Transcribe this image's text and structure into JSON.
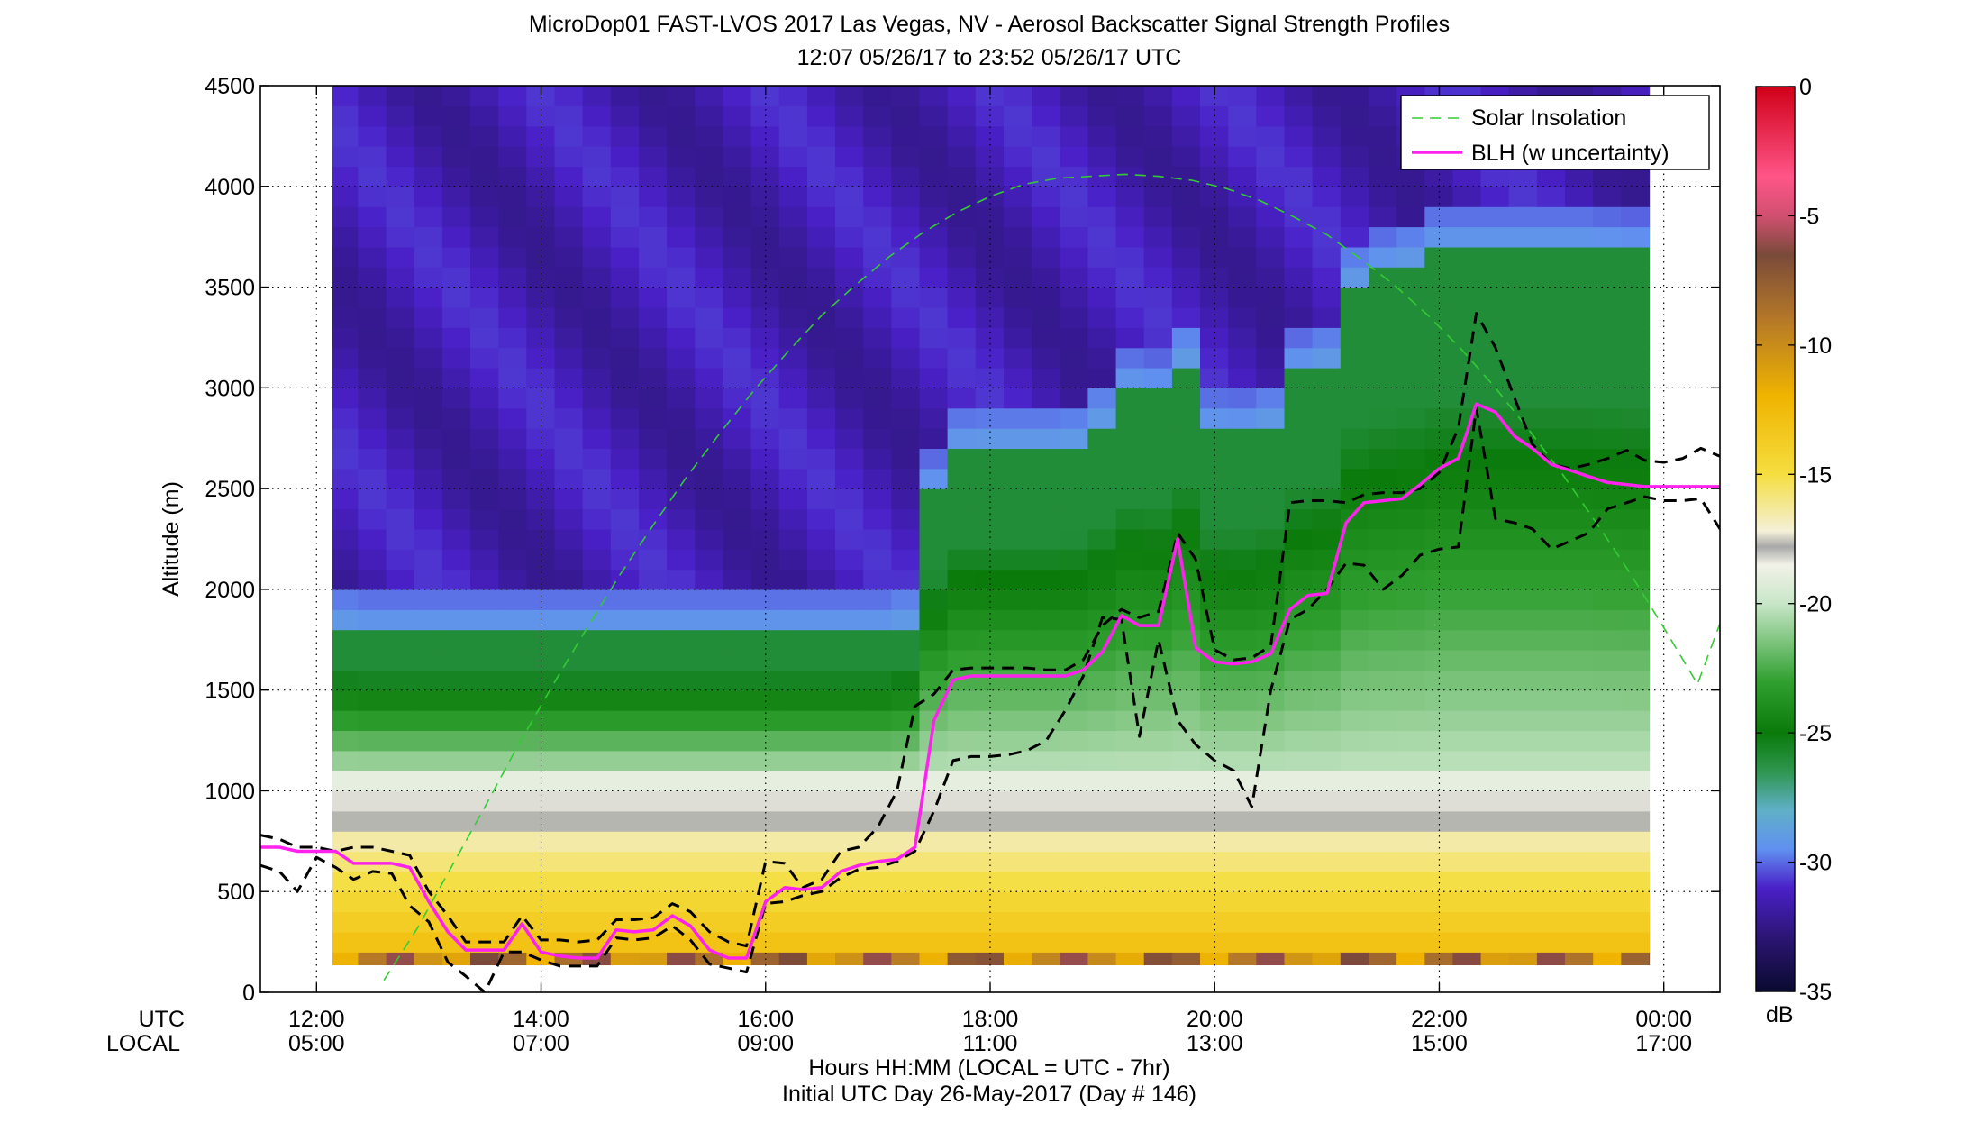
{
  "title_line1": "MicroDop01 FAST-LVOS 2017 Las Vegas, NV - Aerosol Backscatter Signal Strength Profiles",
  "title_line2": "12:07 05/26/17 to 23:52 05/26/17  UTC",
  "row_label_utc": "UTC",
  "row_label_local": "LOCAL",
  "xlabel_line1": "Hours HH:MM  (LOCAL = UTC - 7hr)",
  "xlabel_line2": "Initial UTC Day 26-May-2017 (Day # 146)",
  "colorbar_unit": "dB",
  "colors": {
    "blh": "#ff22ee",
    "uncertainty": "#000000",
    "solar": "#33cc33",
    "grid": "#000000"
  },
  "chart_data": {
    "type": "heatmap",
    "ylabel": "Altitude (m)",
    "ylim": [
      0,
      4500
    ],
    "yticks": [
      "0",
      "500",
      "1000",
      "1500",
      "2000",
      "2500",
      "3000",
      "3500",
      "4000",
      "4500"
    ],
    "ytick_values": [
      0,
      500,
      1000,
      1500,
      2000,
      2500,
      3000,
      3500,
      4000,
      4500
    ],
    "xlim": [
      11.5,
      24.5
    ],
    "xtick_values": [
      12,
      14,
      16,
      18,
      20,
      22,
      24
    ],
    "xticks_utc": [
      "12:00",
      "14:00",
      "16:00",
      "18:00",
      "20:00",
      "22:00",
      "00:00"
    ],
    "xticks_local": [
      "05:00",
      "07:00",
      "09:00",
      "11:00",
      "13:00",
      "15:00",
      "17:00"
    ],
    "data_x_range": [
      12.12,
      23.87
    ],
    "data_y_range": [
      100,
      4500
    ],
    "colorbar": {
      "clim": [
        -35,
        0
      ],
      "ticks": [
        "0",
        "-5",
        "-10",
        "-15",
        "-20",
        "-25",
        "-30",
        "-35"
      ],
      "tick_values": [
        0,
        -5,
        -10,
        -15,
        -20,
        -25,
        -30,
        -35
      ],
      "stops": [
        {
          "v": -35,
          "c": "#0a0a30"
        },
        {
          "v": -33,
          "c": "#2a1570"
        },
        {
          "v": -31,
          "c": "#4a20c8"
        },
        {
          "v": -29.5,
          "c": "#6090f0"
        },
        {
          "v": -28,
          "c": "#60b0c8"
        },
        {
          "v": -26.5,
          "c": "#2e9650"
        },
        {
          "v": -25,
          "c": "#0a7a0a"
        },
        {
          "v": -23,
          "c": "#30a030"
        },
        {
          "v": -20,
          "c": "#c8e6c8"
        },
        {
          "v": -18.5,
          "c": "#f2f2e8"
        },
        {
          "v": -17.8,
          "c": "#a8a8a8"
        },
        {
          "v": -17.2,
          "c": "#f4f0d8"
        },
        {
          "v": -15,
          "c": "#f5de40"
        },
        {
          "v": -12,
          "c": "#f0b400"
        },
        {
          "v": -9,
          "c": "#b47828"
        },
        {
          "v": -6.5,
          "c": "#7a4a3a"
        },
        {
          "v": -5,
          "c": "#d05070"
        },
        {
          "v": -3.5,
          "c": "#ff5588"
        },
        {
          "v": 0,
          "c": "#d00018"
        }
      ]
    },
    "legend": {
      "position": "top-right",
      "entries": [
        "Solar Insolation",
        "BLH (w uncertainty)"
      ]
    },
    "series": [
      {
        "name": "BLH (w uncertainty)",
        "style": "solid",
        "x": [
          11.5,
          11.67,
          11.83,
          12.0,
          12.17,
          12.33,
          12.5,
          12.67,
          12.83,
          13.0,
          13.17,
          13.33,
          13.5,
          13.67,
          13.83,
          14.0,
          14.17,
          14.33,
          14.5,
          14.67,
          14.83,
          15.0,
          15.17,
          15.33,
          15.5,
          15.67,
          15.83,
          16.0,
          16.17,
          16.33,
          16.5,
          16.67,
          16.83,
          17.0,
          17.17,
          17.33,
          17.5,
          17.67,
          17.83,
          18.0,
          18.17,
          18.33,
          18.5,
          18.67,
          18.83,
          19.0,
          19.17,
          19.33,
          19.5,
          19.67,
          19.83,
          20.0,
          20.17,
          20.33,
          20.5,
          20.67,
          20.83,
          21.0,
          21.17,
          21.33,
          21.5,
          21.67,
          21.83,
          22.0,
          22.17,
          22.33,
          22.5,
          22.67,
          22.83,
          23.0,
          23.17,
          23.33,
          23.5,
          23.67,
          23.83,
          24.0,
          24.17,
          24.33,
          24.5
        ],
        "y": [
          720,
          720,
          700,
          700,
          700,
          640,
          640,
          640,
          620,
          450,
          300,
          210,
          210,
          210,
          340,
          200,
          180,
          170,
          170,
          310,
          300,
          310,
          380,
          330,
          210,
          170,
          170,
          450,
          520,
          510,
          520,
          600,
          630,
          650,
          660,
          720,
          1350,
          1550,
          1570,
          1570,
          1570,
          1570,
          1570,
          1570,
          1600,
          1690,
          1870,
          1820,
          1820,
          2250,
          1710,
          1640,
          1630,
          1640,
          1680,
          1900,
          1970,
          1980,
          2330,
          2430,
          2440,
          2450,
          2520,
          2600,
          2650,
          2920,
          2880,
          2760,
          2700,
          2620,
          2590,
          2560,
          2530,
          2520,
          2510,
          2510,
          2510,
          2510,
          2510
        ]
      },
      {
        "name": "",
        "style": "dashed",
        "x": [
          11.5,
          11.67,
          11.83,
          12.0,
          12.17,
          12.33,
          12.5,
          12.67,
          12.83,
          13.0,
          13.17,
          13.33,
          13.5,
          13.67,
          13.83,
          14.0,
          14.17,
          14.33,
          14.5,
          14.67,
          14.83,
          15.0,
          15.17,
          15.33,
          15.5,
          15.67,
          15.83,
          16.0,
          16.17,
          16.33,
          16.5,
          16.67,
          16.83,
          17.0,
          17.17,
          17.33,
          17.5,
          17.67,
          17.83,
          18.0,
          18.17,
          18.33,
          18.5,
          18.67,
          18.83,
          19.0,
          19.17,
          19.33,
          19.5,
          19.67,
          19.83,
          20.0,
          20.17,
          20.33,
          20.5,
          20.67,
          20.83,
          21.0,
          21.17,
          21.33,
          21.5,
          21.67,
          21.83,
          22.0,
          22.17,
          22.33,
          22.5,
          22.67,
          22.83,
          23.0,
          23.17,
          23.33,
          23.5,
          23.67,
          23.83,
          24.0,
          24.17,
          24.33,
          24.5
        ],
        "y": [
          780,
          760,
          720,
          720,
          700,
          720,
          720,
          700,
          680,
          500,
          380,
          250,
          250,
          250,
          380,
          260,
          260,
          250,
          260,
          360,
          360,
          370,
          440,
          400,
          300,
          250,
          230,
          650,
          640,
          520,
          560,
          700,
          720,
          820,
          1000,
          1420,
          1480,
          1600,
          1610,
          1610,
          1610,
          1610,
          1600,
          1600,
          1650,
          1820,
          1900,
          1860,
          1890,
          2280,
          2150,
          1700,
          1650,
          1660,
          1720,
          2430,
          2440,
          2440,
          2430,
          2470,
          2480,
          2480,
          2500,
          2580,
          2800,
          3370,
          3200,
          2950,
          2720,
          2620,
          2600,
          2620,
          2650,
          2690,
          2640,
          2630,
          2650,
          2700,
          2660
        ]
      },
      {
        "name": "",
        "style": "dashed",
        "x": [
          11.5,
          11.67,
          11.83,
          12.0,
          12.17,
          12.33,
          12.5,
          12.67,
          12.83,
          13.0,
          13.17,
          13.33,
          13.5,
          13.67,
          13.83,
          14.0,
          14.17,
          14.33,
          14.5,
          14.67,
          14.83,
          15.0,
          15.17,
          15.33,
          15.5,
          15.67,
          15.83,
          16.0,
          16.17,
          16.33,
          16.5,
          16.67,
          16.83,
          17.0,
          17.17,
          17.33,
          17.5,
          17.67,
          17.83,
          18.0,
          18.17,
          18.33,
          18.5,
          18.67,
          18.83,
          19.0,
          19.17,
          19.33,
          19.5,
          19.67,
          19.83,
          20.0,
          20.17,
          20.33,
          20.5,
          20.67,
          20.83,
          21.0,
          21.17,
          21.33,
          21.5,
          21.67,
          21.83,
          22.0,
          22.17,
          22.33,
          22.5,
          22.67,
          22.83,
          23.0,
          23.17,
          23.33,
          23.5,
          23.67,
          23.83,
          24.0,
          24.17,
          24.33,
          24.5
        ],
        "y": [
          630,
          600,
          500,
          670,
          620,
          560,
          600,
          590,
          430,
          350,
          150,
          80,
          0,
          200,
          200,
          160,
          130,
          130,
          130,
          270,
          260,
          270,
          330,
          260,
          140,
          120,
          100,
          440,
          450,
          480,
          500,
          570,
          610,
          620,
          650,
          700,
          900,
          1150,
          1170,
          1170,
          1180,
          1200,
          1250,
          1400,
          1570,
          1860,
          1850,
          1270,
          1750,
          1350,
          1230,
          1150,
          1100,
          920,
          1500,
          1850,
          1900,
          2000,
          2130,
          2120,
          2000,
          2070,
          2170,
          2200,
          2210,
          2900,
          2350,
          2330,
          2300,
          2200,
          2240,
          2280,
          2400,
          2430,
          2460,
          2440,
          2440,
          2450,
          2300
        ]
      },
      {
        "name": "Solar Insolation",
        "style": "dashed-thin",
        "x": [
          12.6,
          12.9,
          13.2,
          13.5,
          13.8,
          14.1,
          14.4,
          14.7,
          15.0,
          15.3,
          15.6,
          15.9,
          16.2,
          16.5,
          16.8,
          17.1,
          17.4,
          17.7,
          18.0,
          18.3,
          18.6,
          18.9,
          19.2,
          19.5,
          19.8,
          20.1,
          20.4,
          20.7,
          21.0,
          21.3,
          21.6,
          21.9,
          22.2,
          22.5,
          22.8,
          23.1,
          23.4,
          23.7,
          24.0,
          24.3,
          24.5
        ],
        "y": [
          60,
          320,
          620,
          920,
          1230,
          1520,
          1800,
          2070,
          2320,
          2560,
          2780,
          2990,
          3180,
          3360,
          3510,
          3650,
          3770,
          3870,
          3950,
          4010,
          4040,
          4050,
          4060,
          4050,
          4030,
          3990,
          3930,
          3850,
          3760,
          3640,
          3510,
          3360,
          3190,
          3000,
          2790,
          2570,
          2330,
          2080,
          1810,
          1530,
          1830
        ]
      }
    ]
  }
}
